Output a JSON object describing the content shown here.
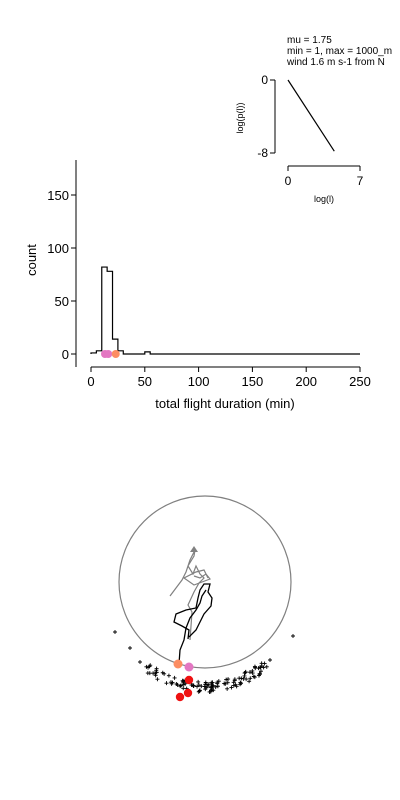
{
  "annotations": {
    "mu": "mu = 1.75",
    "range": "min = 1, max = 1000_m",
    "wind": "wind 1.6 m s-1 from N"
  },
  "inset": {
    "ylabel": "log(p(l))",
    "xlabel": "log(l)",
    "yticks": [
      "0",
      "-8"
    ],
    "xticks": [
      "0",
      "7"
    ],
    "xlim": [
      0,
      7
    ],
    "ylim": [
      -8,
      0
    ],
    "line": [
      [
        0,
        0
      ],
      [
        4.5,
        -7.8
      ]
    ]
  },
  "chart_data": {
    "type": "bar",
    "xlabel": "total flight duration (min)",
    "ylabel": "count",
    "xlim": [
      0,
      250
    ],
    "ylim": [
      -10,
      180
    ],
    "xticks": [
      "0",
      "50",
      "100",
      "150",
      "200",
      "250"
    ],
    "yticks": [
      "0",
      "50",
      "100",
      "150"
    ],
    "bin_width": 5,
    "bins": [
      {
        "x": 0,
        "count": 1
      },
      {
        "x": 5,
        "count": 3
      },
      {
        "x": 10,
        "count": 82
      },
      {
        "x": 15,
        "count": 78
      },
      {
        "x": 20,
        "count": 14
      },
      {
        "x": 25,
        "count": 3
      },
      {
        "x": 30,
        "count": 0
      },
      {
        "x": 35,
        "count": 0
      },
      {
        "x": 40,
        "count": 0
      },
      {
        "x": 45,
        "count": 0
      },
      {
        "x": 50,
        "count": 2
      },
      {
        "x": 55,
        "count": 0
      }
    ],
    "markers": [
      {
        "x": 13,
        "y": 0,
        "color": "#e377c2"
      },
      {
        "x": 16,
        "y": 0,
        "color": "#e377c2"
      },
      {
        "x": 23,
        "y": 0,
        "color": "#fc8d62"
      }
    ]
  },
  "colors": {
    "red": "#ee1111",
    "orange": "#fc8d62",
    "pink": "#e377c2",
    "gray": "#808080"
  }
}
